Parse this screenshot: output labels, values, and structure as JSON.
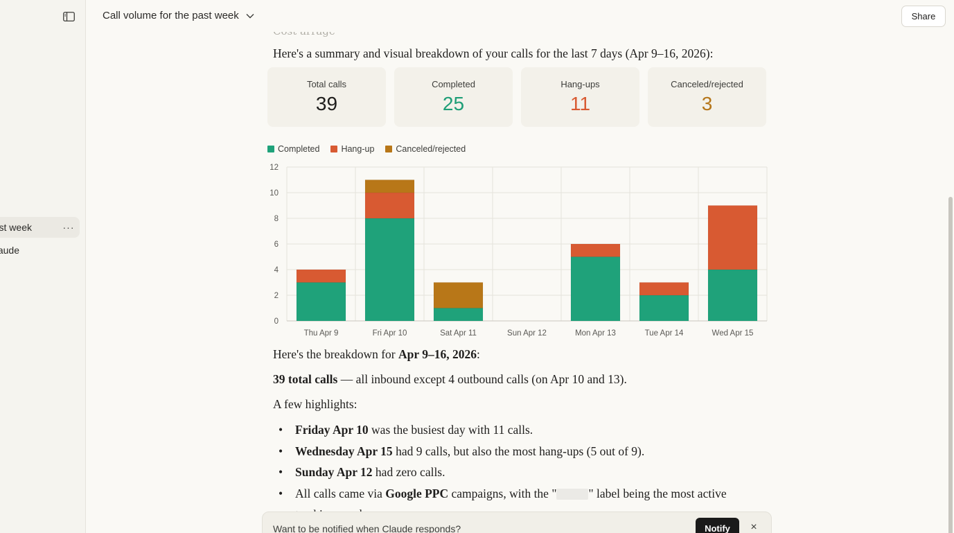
{
  "sidebar": {
    "items": [
      {
        "label": "st week",
        "more": "···"
      },
      {
        "label": "aude"
      }
    ]
  },
  "header": {
    "title": "Call volume for the past week",
    "share_label": "Share"
  },
  "content": {
    "prev_text": "Cost arrage",
    "intro": "Here's a summary and visual breakdown of your calls for the last 7 days (Apr 9–16, 2026):",
    "stats": [
      {
        "label": "Total calls",
        "value": "39",
        "color": "#1f1e1d"
      },
      {
        "label": "Completed",
        "value": "25",
        "color": "#1e9e77"
      },
      {
        "label": "Hang-ups",
        "value": "11",
        "color": "#d85a32"
      },
      {
        "label": "Canceled/rejected",
        "value": "3",
        "color": "#b5761a"
      }
    ],
    "breakdown_pre": "Here's the breakdown for ",
    "breakdown_bold": "Apr 9–16, 2026",
    "breakdown_post": ":",
    "total_bold": "39 total calls",
    "total_rest": " — all inbound except 4 outbound calls (on Apr 10 and 13).",
    "highlights_title": "A few highlights:",
    "highlights": [
      {
        "bold": "Friday Apr 10",
        "rest": " was the busiest day with 11 calls."
      },
      {
        "bold": "Wednesday Apr 15",
        "rest": " had 9 calls, but also the most hang-ups (5 out of 9)."
      },
      {
        "bold": "Sunday Apr 12",
        "rest": " had zero calls."
      },
      {
        "pre": "All calls came via ",
        "bold": "Google PPC",
        "mid": " campaigns, with the \"",
        "post": "\" label being the most active"
      },
      {
        "text": "tracking number."
      }
    ]
  },
  "chart_data": {
    "type": "bar",
    "stacked": true,
    "categories": [
      "Thu Apr 9",
      "Fri Apr 10",
      "Sat Apr 11",
      "Sun Apr 12",
      "Mon Apr 13",
      "Tue Apr 14",
      "Wed Apr 15"
    ],
    "series": [
      {
        "name": "Completed",
        "color": "#1fa27a",
        "values": [
          3,
          8,
          1,
          0,
          5,
          2,
          4
        ]
      },
      {
        "name": "Hang-up",
        "color": "#d85a32",
        "values": [
          1,
          2,
          0,
          0,
          1,
          1,
          5
        ]
      },
      {
        "name": "Canceled/rejected",
        "color": "#b87718",
        "values": [
          0,
          1,
          2,
          0,
          0,
          0,
          0
        ]
      }
    ],
    "ylim": [
      0,
      12
    ],
    "yticks": [
      0,
      2,
      4,
      6,
      8,
      10,
      12
    ],
    "grid": true,
    "legend": "top-left"
  },
  "notify": {
    "text": "Want to be notified when Claude responds?",
    "button": "Notify",
    "close": "×"
  }
}
